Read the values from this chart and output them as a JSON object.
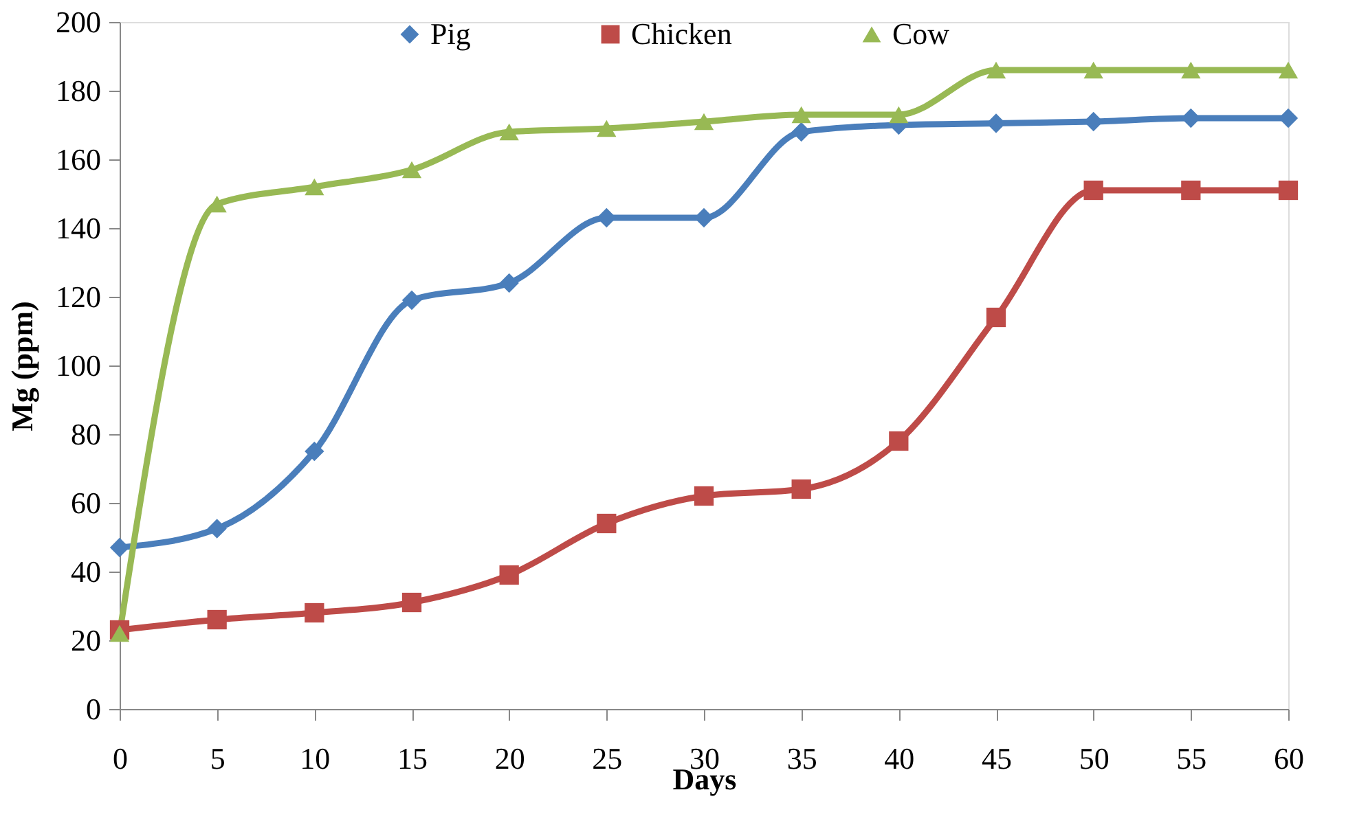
{
  "chart_data": {
    "type": "line",
    "xlabel": "Days",
    "ylabel": "Mg (ppm)",
    "x": [
      0,
      5,
      10,
      15,
      20,
      25,
      30,
      35,
      40,
      45,
      50,
      55,
      60
    ],
    "xlim": [
      0,
      60
    ],
    "xticks": [
      0,
      5,
      10,
      15,
      20,
      25,
      30,
      35,
      40,
      45,
      50,
      55,
      60
    ],
    "ylim": [
      0,
      200
    ],
    "yticks": [
      0,
      20,
      40,
      60,
      80,
      100,
      120,
      140,
      160,
      180,
      200
    ],
    "grid": false,
    "legend": "top",
    "line_style": "solid",
    "series": [
      {
        "name": "Pig",
        "color": "#4a7ebb",
        "marker": "diamond",
        "values": [
          47,
          52.5,
          75,
          119,
          124,
          143,
          143,
          168,
          170,
          170.5,
          171,
          172,
          172
        ]
      },
      {
        "name": "Chicken",
        "color": "#be4b48",
        "marker": "square",
        "values": [
          23,
          26,
          28,
          31,
          39,
          54,
          62,
          64,
          78,
          114,
          151,
          151,
          151
        ]
      },
      {
        "name": "Cow",
        "color": "#98b954",
        "marker": "triangle",
        "values": [
          22,
          147,
          152,
          157,
          168,
          169,
          171,
          173,
          173,
          186,
          186,
          186,
          186
        ]
      }
    ]
  }
}
